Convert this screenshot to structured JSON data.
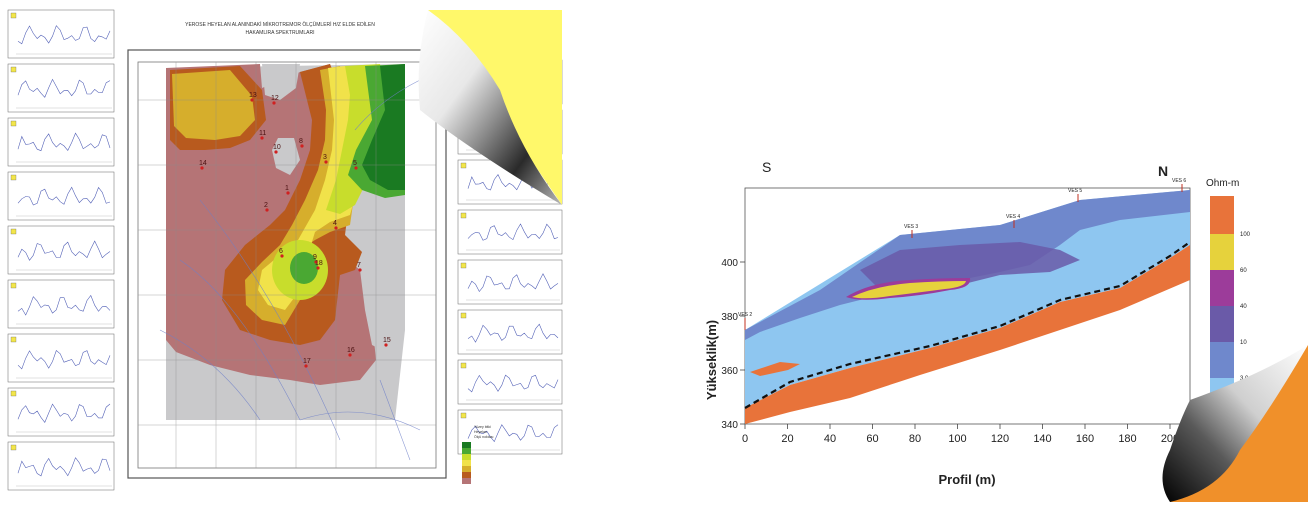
{
  "left_figure": {
    "title_line1": "YEROSE HEYELAN ALANINDAKİ MİKROTREMOR ÖLÇÜMLERİ H/Z ELDE EDİLEN",
    "title_line2": "HAKAMLIRA SPEKTRUMLARI",
    "points": [
      "1",
      "2",
      "3",
      "4",
      "5",
      "6",
      "7",
      "8",
      "9",
      "10",
      "11",
      "12",
      "13",
      "14",
      "15",
      "16",
      "17",
      "18"
    ],
    "legend_items": [
      "Yüzey bitki",
      "Heyelan",
      "Ölçü noktası"
    ]
  },
  "right_figure": {
    "label_south": "S",
    "label_north": "N",
    "ylabel": "Yükseklik(m)",
    "xlabel": "Profil (m)",
    "legend_title": "Ohm-m",
    "x_ticks": [
      "0",
      "20",
      "40",
      "60",
      "80",
      "100",
      "120",
      "140",
      "160",
      "180",
      "200"
    ],
    "y_ticks": [
      "340",
      "360",
      "380",
      "400"
    ],
    "legend_values": [
      "100",
      "60",
      "40",
      "10",
      "3.0"
    ],
    "ves_labels": [
      "VES 2",
      "VES 3",
      "VES 4",
      "VES 5",
      "VES 6"
    ]
  },
  "colors": {
    "page_curl_yellow": "#fff86a",
    "page_curl_orange": "#f0902a",
    "resistivity_orange": "#e8733a",
    "resistivity_yellow": "#e6d23c",
    "resistivity_purple": "#9c3c9a",
    "resistivity_violet": "#6a5aa8",
    "resistivity_blue": "#6f88cc",
    "resistivity_lightblue": "#8ec6f0"
  }
}
